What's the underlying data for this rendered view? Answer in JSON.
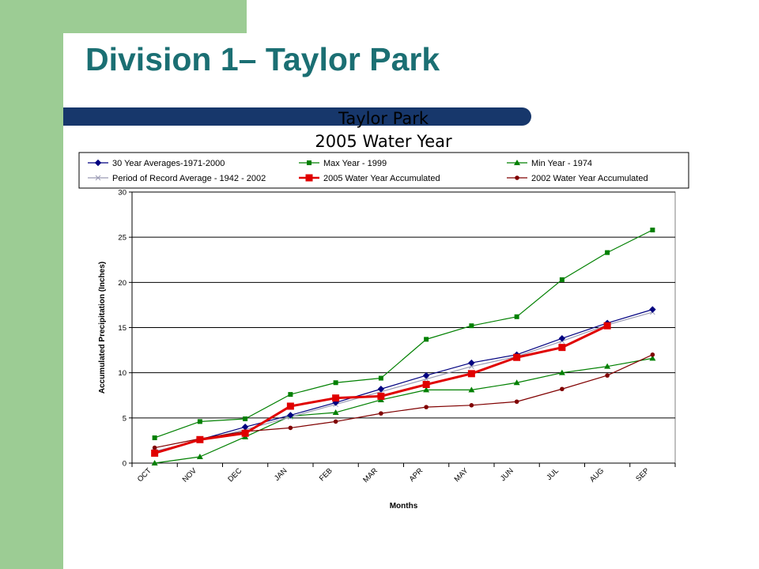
{
  "slide": {
    "title": "Division 1– Taylor Park"
  },
  "colors": {
    "side_bar": "#9ccc94",
    "title_text": "#1b6f73",
    "title_band": "#17376b"
  },
  "chart_data": {
    "type": "line",
    "title": "Taylor Park",
    "subtitle": "2005 Water Year",
    "xlabel": "Months",
    "ylabel": "Accumulated Precipitation (Inches)",
    "ylim": [
      0,
      30
    ],
    "yticks": [
      0,
      5,
      10,
      15,
      20,
      25,
      30
    ],
    "grid": "horizontal",
    "legend_position": "top",
    "categories": [
      "OCT",
      "NOV",
      "DEC",
      "JAN",
      "FEB",
      "MAR",
      "APR",
      "MAY",
      "JUN",
      "JUL",
      "AUG",
      "SEP"
    ],
    "series": [
      {
        "name": "30 Year Averages-1971-2000",
        "color": "#000080",
        "marker": "diamond",
        "values": [
          1.2,
          2.6,
          4.0,
          5.3,
          6.7,
          8.2,
          9.7,
          11.1,
          12.0,
          13.8,
          15.5,
          17.0
        ]
      },
      {
        "name": "Max Year - 1999",
        "color": "#008000",
        "marker": "square",
        "values": [
          2.8,
          4.6,
          4.9,
          7.6,
          8.9,
          9.4,
          13.7,
          15.2,
          16.2,
          20.3,
          23.3,
          25.8
        ]
      },
      {
        "name": "Min Year - 1974",
        "color": "#008000",
        "marker": "triangle",
        "values": [
          0.0,
          0.7,
          2.9,
          5.2,
          5.6,
          7.0,
          8.1,
          8.1,
          8.9,
          10.0,
          10.7,
          11.6
        ]
      },
      {
        "name": "Period of Record Average - 1942 - 2002",
        "color": "#9a9ab4",
        "marker": "x",
        "values": [
          1.3,
          2.5,
          3.7,
          5.1,
          6.5,
          7.9,
          9.3,
          10.7,
          11.8,
          13.5,
          15.3,
          16.7
        ]
      },
      {
        "name": "2005 Water Year Accumulated",
        "color": "#e00000",
        "marker": "square-large",
        "values": [
          1.1,
          2.6,
          3.3,
          6.3,
          7.2,
          7.4,
          8.7,
          9.9,
          11.7,
          12.8,
          15.2,
          null
        ]
      },
      {
        "name": "2002 Water Year Accumulated",
        "color": "#800000",
        "marker": "circle",
        "values": [
          1.7,
          2.7,
          3.5,
          3.9,
          4.6,
          5.5,
          6.2,
          6.4,
          6.8,
          8.2,
          9.7,
          12.0
        ]
      }
    ]
  }
}
